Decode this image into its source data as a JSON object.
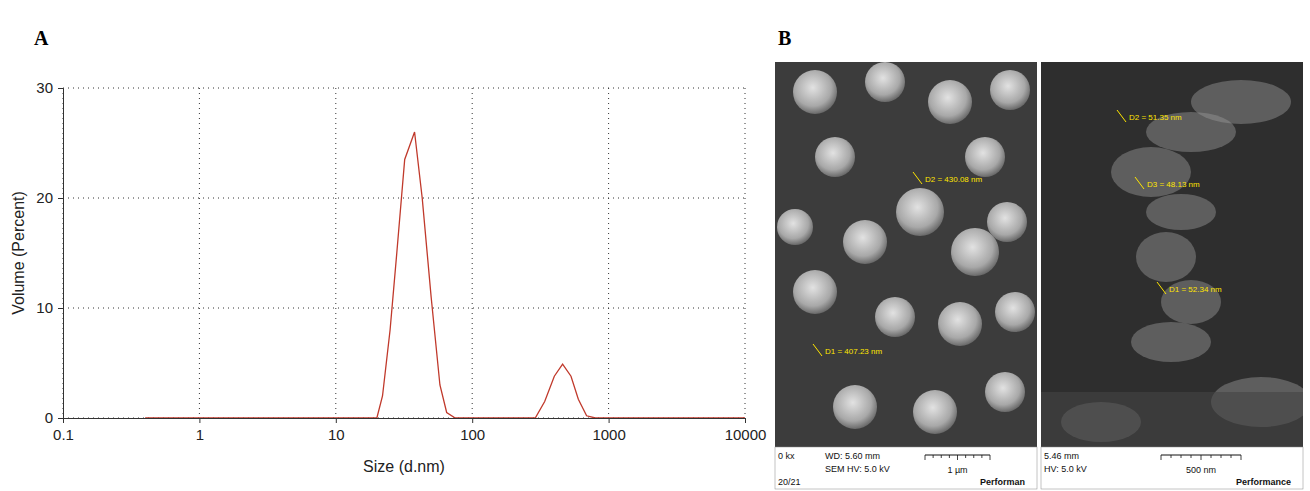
{
  "panel_labels": [
    "A",
    "B"
  ],
  "chart_data": {
    "type": "line",
    "x": [
      0.4,
      20,
      22,
      25,
      28,
      32,
      37.8,
      43,
      50,
      58,
      65,
      75,
      290,
      340,
      400,
      460,
      530,
      600,
      690,
      800,
      10000
    ],
    "values": [
      0,
      0,
      2,
      8,
      15,
      23.5,
      26,
      20,
      11,
      3,
      0.5,
      0,
      0,
      1.5,
      3.8,
      4.9,
      3.8,
      1.7,
      0.2,
      0,
      0
    ],
    "color": "#c0392b",
    "xlabel": "Size (d.nm)",
    "ylabel": "Volume (Percent)",
    "xlim": [
      0.1,
      10000
    ],
    "ylim": [
      0,
      30
    ],
    "xticks": [
      0.1,
      1,
      10,
      100,
      1000,
      10000
    ],
    "yticks": [
      0,
      10,
      20,
      30
    ],
    "log": "x",
    "grid": true
  },
  "micrographs": [
    {
      "measurements": [
        "D2 = 430.08 nm",
        "D1 = 407.23 nm"
      ],
      "info": [
        "0 kx",
        "WD: 5.60 mm",
        "SEM HV: 5.0 kV",
        "20/21"
      ],
      "scale_bar": "1 µm",
      "footer": "Performan"
    },
    {
      "measurements": [
        "D2 = 51.35 nm",
        "D3 = 48.13 nm",
        "D1 = 52.34 nm"
      ],
      "info": [
        "5.46 mm",
        "HV: 5.0 kV"
      ],
      "scale_bar": "500 nm",
      "footer": "Performance"
    }
  ]
}
